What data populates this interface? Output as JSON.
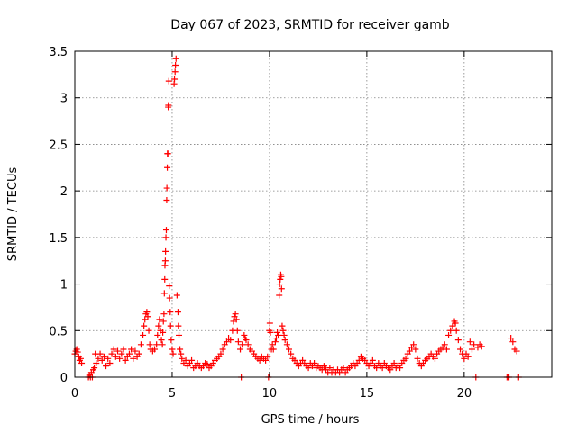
{
  "chart_data": {
    "type": "scatter",
    "title": "Day 067 of 2023, SRMTID for receiver gamb",
    "xlabel": "GPS time / hours",
    "ylabel": "SRMTID / TECUs",
    "xlim": [
      0,
      24.5
    ],
    "ylim": [
      0,
      3.5
    ],
    "x_ticks": [
      0,
      5,
      10,
      15,
      20
    ],
    "x_tick_labels": [
      "0",
      "5",
      "10",
      "15",
      "20"
    ],
    "y_ticks": [
      0,
      0.5,
      1,
      1.5,
      2,
      2.5,
      3,
      3.5
    ],
    "y_tick_labels": [
      "0",
      "0.5",
      "1",
      "1.5",
      "2",
      "2.5",
      "3",
      "3.5"
    ],
    "grid": true,
    "marker": "+",
    "marker_color": "#ff0000",
    "series": [
      {
        "name": "SRMTID",
        "points": [
          [
            0.0,
            0.25
          ],
          [
            0.05,
            0.28
          ],
          [
            0.1,
            0.3
          ],
          [
            0.15,
            0.27
          ],
          [
            0.2,
            0.22
          ],
          [
            0.25,
            0.18
          ],
          [
            0.3,
            0.2
          ],
          [
            0.35,
            0.15
          ],
          [
            0.7,
            0.0
          ],
          [
            0.75,
            0.02
          ],
          [
            0.8,
            0.0
          ],
          [
            0.85,
            0.05
          ],
          [
            0.9,
            0.0
          ],
          [
            0.95,
            0.08
          ],
          [
            1.0,
            0.1
          ],
          [
            1.05,
            0.25
          ],
          [
            1.1,
            0.15
          ],
          [
            1.2,
            0.2
          ],
          [
            1.3,
            0.25
          ],
          [
            1.4,
            0.18
          ],
          [
            1.5,
            0.22
          ],
          [
            1.6,
            0.12
          ],
          [
            1.7,
            0.2
          ],
          [
            1.8,
            0.15
          ],
          [
            1.9,
            0.25
          ],
          [
            2.0,
            0.3
          ],
          [
            2.1,
            0.22
          ],
          [
            2.2,
            0.28
          ],
          [
            2.3,
            0.2
          ],
          [
            2.4,
            0.25
          ],
          [
            2.5,
            0.3
          ],
          [
            2.6,
            0.18
          ],
          [
            2.7,
            0.22
          ],
          [
            2.8,
            0.25
          ],
          [
            2.9,
            0.3
          ],
          [
            3.0,
            0.2
          ],
          [
            3.1,
            0.28
          ],
          [
            3.2,
            0.22
          ],
          [
            3.3,
            0.25
          ],
          [
            3.4,
            0.35
          ],
          [
            3.5,
            0.45
          ],
          [
            3.55,
            0.55
          ],
          [
            3.6,
            0.62
          ],
          [
            3.65,
            0.68
          ],
          [
            3.7,
            0.7
          ],
          [
            3.75,
            0.65
          ],
          [
            3.8,
            0.5
          ],
          [
            3.85,
            0.35
          ],
          [
            3.9,
            0.3
          ],
          [
            4.0,
            0.28
          ],
          [
            4.1,
            0.3
          ],
          [
            4.2,
            0.35
          ],
          [
            4.25,
            0.45
          ],
          [
            4.3,
            0.55
          ],
          [
            4.35,
            0.62
          ],
          [
            4.4,
            0.5
          ],
          [
            4.45,
            0.4
          ],
          [
            4.5,
            0.35
          ],
          [
            4.52,
            0.48
          ],
          [
            4.55,
            0.6
          ],
          [
            4.58,
            0.68
          ],
          [
            4.6,
            0.9
          ],
          [
            4.62,
            1.05
          ],
          [
            4.63,
            1.2
          ],
          [
            4.65,
            1.25
          ],
          [
            4.66,
            1.35
          ],
          [
            4.68,
            1.5
          ],
          [
            4.7,
            1.58
          ],
          [
            4.72,
            1.9
          ],
          [
            4.73,
            2.03
          ],
          [
            4.75,
            2.25
          ],
          [
            4.76,
            2.4
          ],
          [
            4.78,
            2.4
          ],
          [
            4.8,
            2.9
          ],
          [
            4.81,
            2.92
          ],
          [
            4.83,
            3.18
          ],
          [
            4.85,
            0.98
          ],
          [
            4.87,
            0.85
          ],
          [
            4.9,
            0.7
          ],
          [
            4.92,
            0.55
          ],
          [
            4.95,
            0.4
          ],
          [
            5.0,
            0.3
          ],
          [
            5.05,
            0.25
          ],
          [
            5.1,
            3.15
          ],
          [
            5.12,
            3.2
          ],
          [
            5.15,
            3.28
          ],
          [
            5.17,
            3.35
          ],
          [
            5.2,
            3.42
          ],
          [
            5.25,
            0.88
          ],
          [
            5.3,
            0.7
          ],
          [
            5.32,
            0.55
          ],
          [
            5.35,
            0.45
          ],
          [
            5.4,
            0.3
          ],
          [
            5.45,
            0.25
          ],
          [
            5.5,
            0.2
          ],
          [
            5.6,
            0.15
          ],
          [
            5.7,
            0.18
          ],
          [
            5.8,
            0.12
          ],
          [
            5.9,
            0.15
          ],
          [
            6.0,
            0.18
          ],
          [
            6.1,
            0.1
          ],
          [
            6.2,
            0.12
          ],
          [
            6.3,
            0.15
          ],
          [
            6.4,
            0.12
          ],
          [
            6.5,
            0.1
          ],
          [
            6.6,
            0.12
          ],
          [
            6.7,
            0.15
          ],
          [
            6.8,
            0.14
          ],
          [
            6.9,
            0.1
          ],
          [
            7.0,
            0.12
          ],
          [
            7.1,
            0.15
          ],
          [
            7.2,
            0.18
          ],
          [
            7.3,
            0.2
          ],
          [
            7.4,
            0.22
          ],
          [
            7.5,
            0.25
          ],
          [
            7.6,
            0.3
          ],
          [
            7.7,
            0.35
          ],
          [
            7.8,
            0.38
          ],
          [
            7.9,
            0.42
          ],
          [
            8.0,
            0.4
          ],
          [
            8.1,
            0.5
          ],
          [
            8.15,
            0.6
          ],
          [
            8.2,
            0.65
          ],
          [
            8.25,
            0.68
          ],
          [
            8.3,
            0.62
          ],
          [
            8.35,
            0.5
          ],
          [
            8.4,
            0.38
          ],
          [
            8.5,
            0.3
          ],
          [
            8.55,
            0.0
          ],
          [
            8.6,
            0.35
          ],
          [
            8.7,
            0.45
          ],
          [
            8.75,
            0.42
          ],
          [
            8.8,
            0.4
          ],
          [
            8.9,
            0.35
          ],
          [
            9.0,
            0.3
          ],
          [
            9.1,
            0.28
          ],
          [
            9.2,
            0.25
          ],
          [
            9.3,
            0.22
          ],
          [
            9.4,
            0.2
          ],
          [
            9.5,
            0.18
          ],
          [
            9.6,
            0.22
          ],
          [
            9.7,
            0.2
          ],
          [
            9.8,
            0.18
          ],
          [
            9.9,
            0.22
          ],
          [
            9.95,
            0.0
          ],
          [
            10.0,
            0.5
          ],
          [
            10.02,
            0.58
          ],
          [
            10.05,
            0.48
          ],
          [
            10.1,
            0.3
          ],
          [
            10.15,
            0.35
          ],
          [
            10.2,
            0.3
          ],
          [
            10.3,
            0.38
          ],
          [
            10.35,
            0.42
          ],
          [
            10.4,
            0.48
          ],
          [
            10.45,
            0.45
          ],
          [
            10.5,
            0.88
          ],
          [
            10.52,
            1.0
          ],
          [
            10.55,
            1.05
          ],
          [
            10.58,
            1.1
          ],
          [
            10.6,
            1.08
          ],
          [
            10.62,
            0.95
          ],
          [
            10.65,
            0.55
          ],
          [
            10.7,
            0.5
          ],
          [
            10.75,
            0.45
          ],
          [
            10.8,
            0.4
          ],
          [
            10.9,
            0.35
          ],
          [
            11.0,
            0.3
          ],
          [
            11.1,
            0.25
          ],
          [
            11.2,
            0.2
          ],
          [
            11.3,
            0.18
          ],
          [
            11.4,
            0.15
          ],
          [
            11.5,
            0.12
          ],
          [
            11.6,
            0.15
          ],
          [
            11.7,
            0.18
          ],
          [
            11.8,
            0.15
          ],
          [
            11.9,
            0.12
          ],
          [
            12.0,
            0.1
          ],
          [
            12.1,
            0.15
          ],
          [
            12.2,
            0.12
          ],
          [
            12.3,
            0.15
          ],
          [
            12.4,
            0.1
          ],
          [
            12.5,
            0.12
          ],
          [
            12.6,
            0.1
          ],
          [
            12.7,
            0.08
          ],
          [
            12.8,
            0.12
          ],
          [
            12.9,
            0.08
          ],
          [
            13.0,
            0.05
          ],
          [
            13.1,
            0.1
          ],
          [
            13.2,
            0.05
          ],
          [
            13.3,
            0.08
          ],
          [
            13.4,
            0.05
          ],
          [
            13.5,
            0.08
          ],
          [
            13.6,
            0.05
          ],
          [
            13.7,
            0.08
          ],
          [
            13.8,
            0.1
          ],
          [
            13.9,
            0.05
          ],
          [
            14.0,
            0.08
          ],
          [
            14.1,
            0.1
          ],
          [
            14.2,
            0.12
          ],
          [
            14.3,
            0.15
          ],
          [
            14.4,
            0.12
          ],
          [
            14.5,
            0.15
          ],
          [
            14.6,
            0.18
          ],
          [
            14.7,
            0.22
          ],
          [
            14.8,
            0.2
          ],
          [
            14.9,
            0.18
          ],
          [
            15.0,
            0.15
          ],
          [
            15.1,
            0.12
          ],
          [
            15.2,
            0.15
          ],
          [
            15.3,
            0.18
          ],
          [
            15.4,
            0.12
          ],
          [
            15.5,
            0.1
          ],
          [
            15.6,
            0.15
          ],
          [
            15.7,
            0.12
          ],
          [
            15.8,
            0.1
          ],
          [
            15.9,
            0.15
          ],
          [
            16.0,
            0.12
          ],
          [
            16.1,
            0.1
          ],
          [
            16.2,
            0.08
          ],
          [
            16.3,
            0.12
          ],
          [
            16.4,
            0.15
          ],
          [
            16.5,
            0.1
          ],
          [
            16.6,
            0.12
          ],
          [
            16.7,
            0.1
          ],
          [
            16.8,
            0.15
          ],
          [
            16.9,
            0.18
          ],
          [
            17.0,
            0.2
          ],
          [
            17.1,
            0.25
          ],
          [
            17.2,
            0.28
          ],
          [
            17.3,
            0.32
          ],
          [
            17.4,
            0.35
          ],
          [
            17.5,
            0.3
          ],
          [
            17.6,
            0.2
          ],
          [
            17.7,
            0.15
          ],
          [
            17.8,
            0.12
          ],
          [
            17.9,
            0.15
          ],
          [
            18.0,
            0.18
          ],
          [
            18.1,
            0.2
          ],
          [
            18.2,
            0.22
          ],
          [
            18.3,
            0.25
          ],
          [
            18.4,
            0.22
          ],
          [
            18.5,
            0.2
          ],
          [
            18.6,
            0.25
          ],
          [
            18.7,
            0.28
          ],
          [
            18.8,
            0.3
          ],
          [
            18.9,
            0.32
          ],
          [
            19.0,
            0.35
          ],
          [
            19.1,
            0.3
          ],
          [
            19.2,
            0.45
          ],
          [
            19.3,
            0.5
          ],
          [
            19.4,
            0.55
          ],
          [
            19.5,
            0.6
          ],
          [
            19.55,
            0.58
          ],
          [
            19.6,
            0.5
          ],
          [
            19.7,
            0.4
          ],
          [
            19.8,
            0.3
          ],
          [
            19.9,
            0.25
          ],
          [
            20.0,
            0.2
          ],
          [
            20.1,
            0.25
          ],
          [
            20.2,
            0.22
          ],
          [
            20.3,
            0.38
          ],
          [
            20.4,
            0.3
          ],
          [
            20.5,
            0.35
          ],
          [
            20.6,
            0.0
          ],
          [
            20.7,
            0.32
          ],
          [
            20.8,
            0.35
          ],
          [
            20.9,
            0.33
          ],
          [
            22.2,
            0.0
          ],
          [
            22.3,
            0.0
          ],
          [
            22.4,
            0.42
          ],
          [
            22.5,
            0.38
          ],
          [
            22.6,
            0.3
          ],
          [
            22.7,
            0.28
          ],
          [
            22.8,
            0.0
          ]
        ]
      }
    ]
  }
}
